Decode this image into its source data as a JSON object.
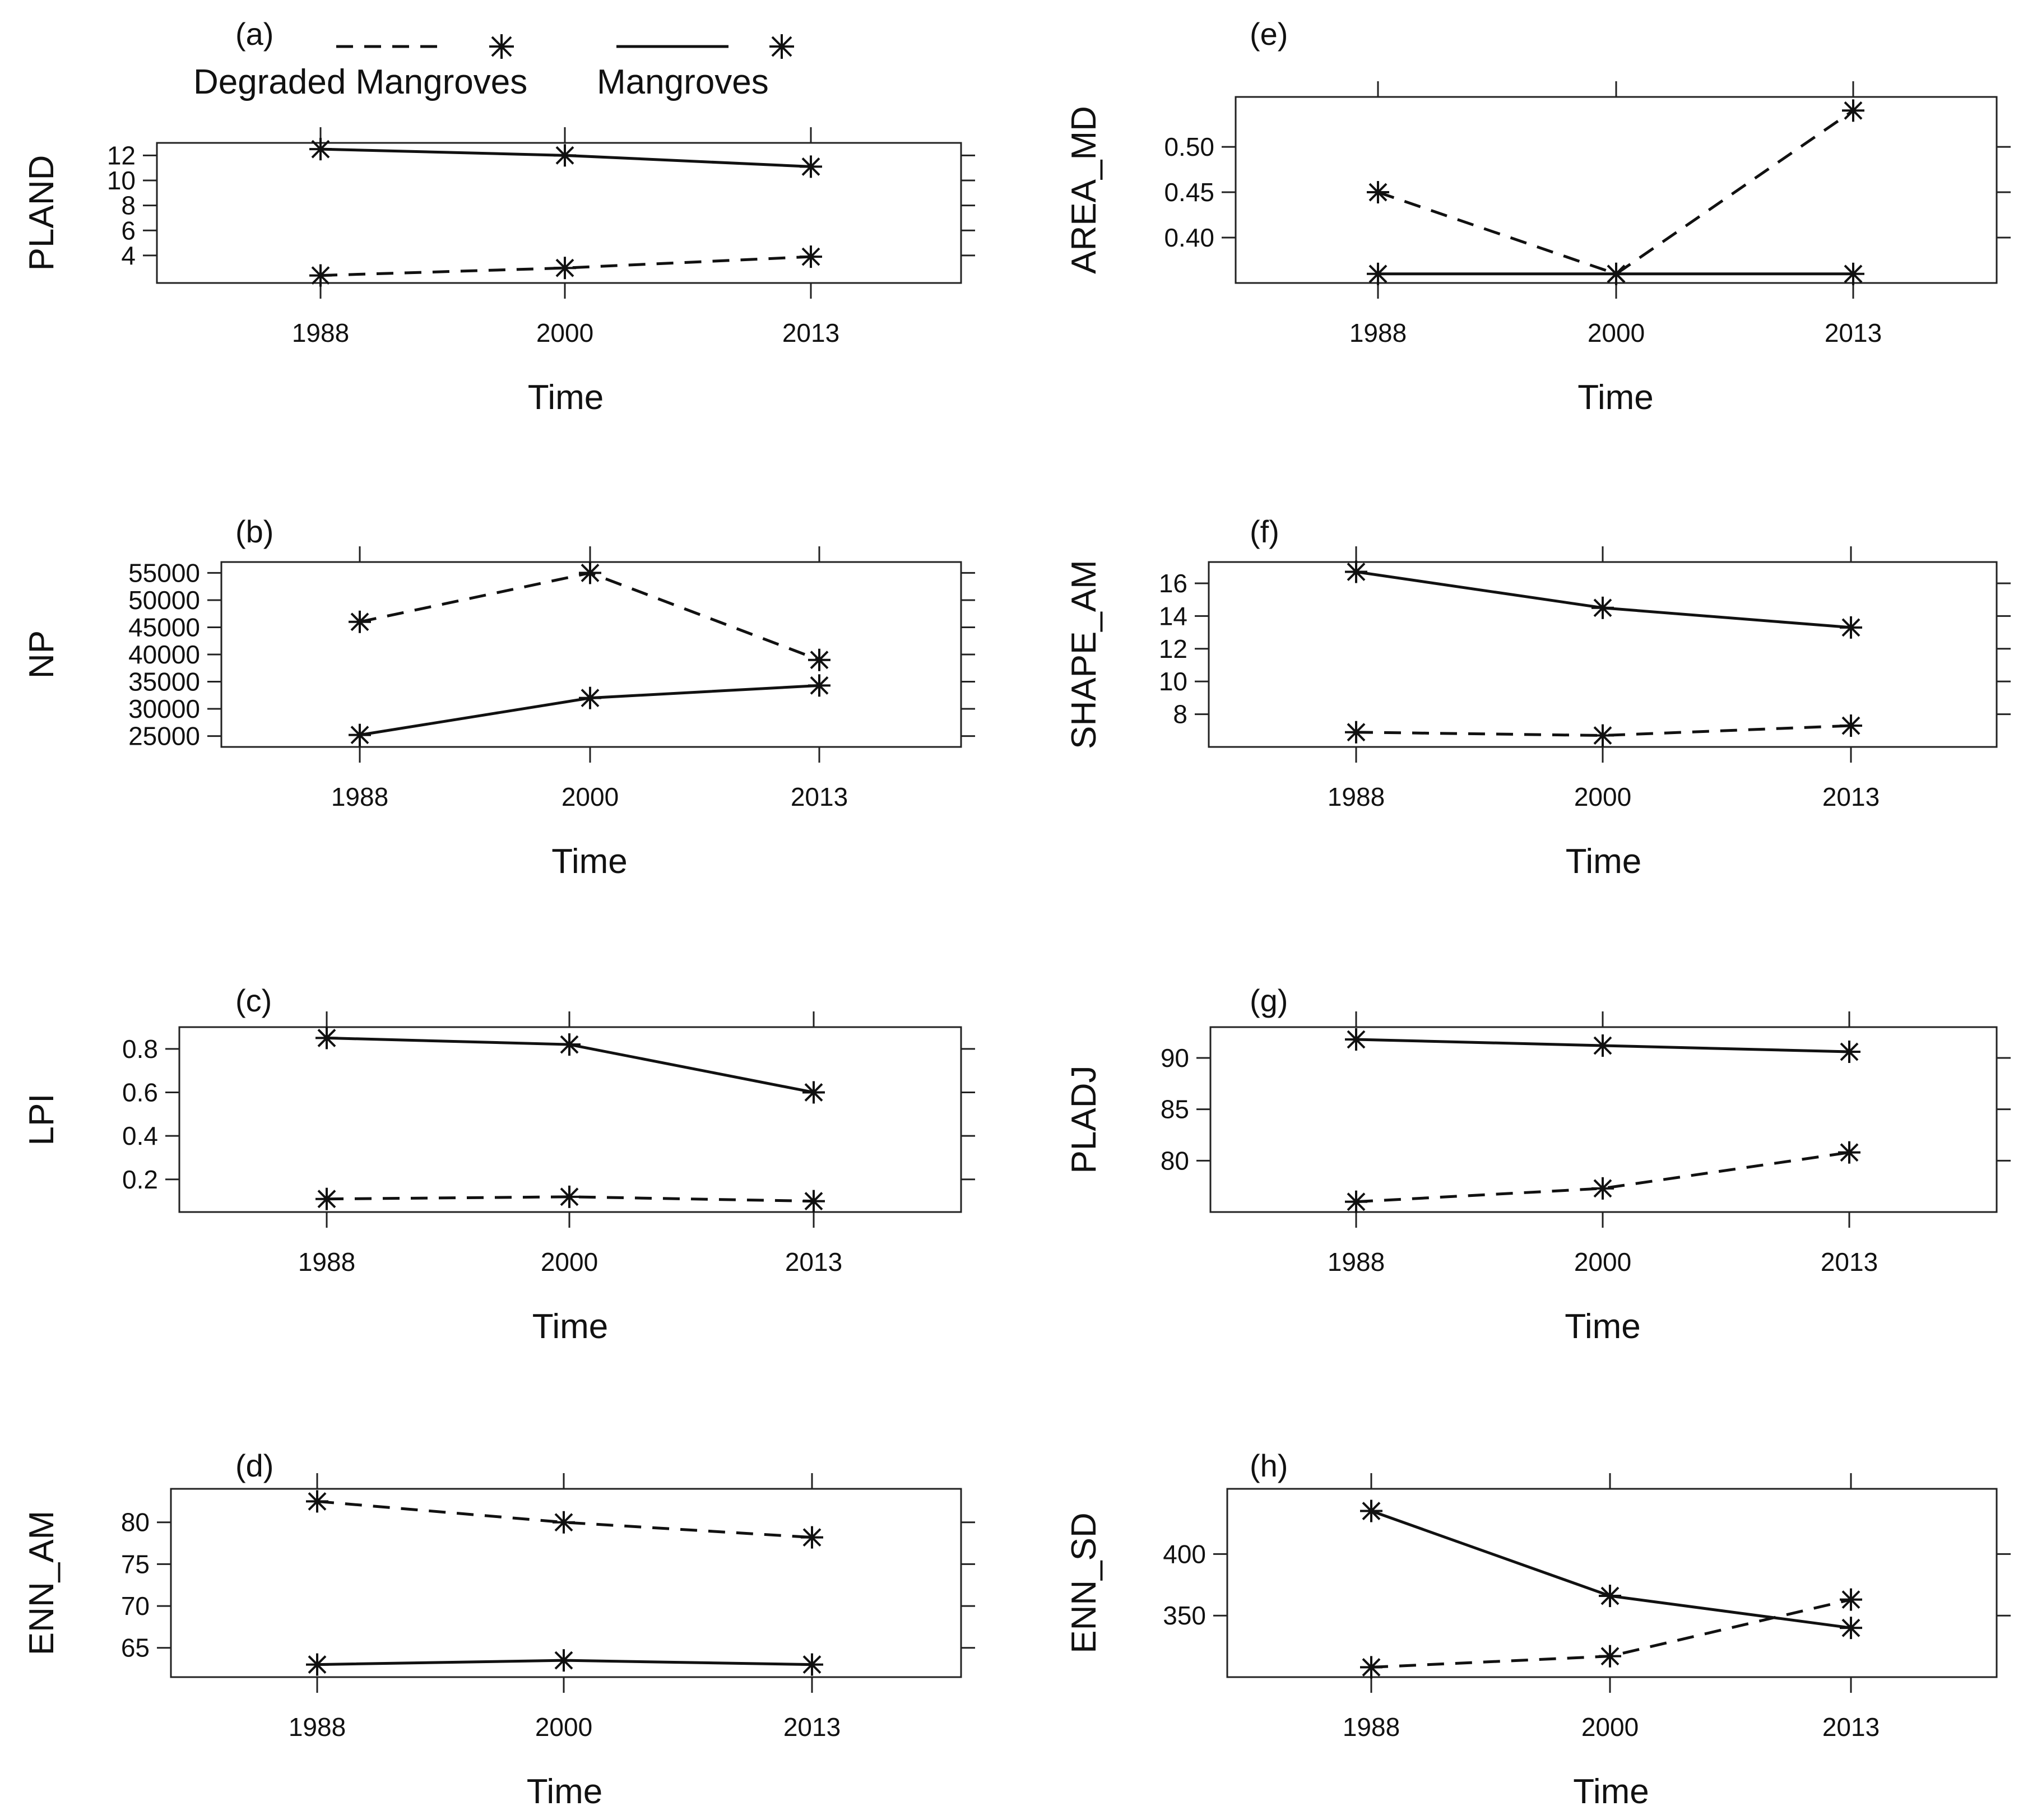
{
  "legend": {
    "degraded_label": "Degraded Mangroves",
    "mangroves_label": "Mangroves"
  },
  "chart_data": [
    {
      "type": "line",
      "panel": "(a)",
      "xlabel": "Time",
      "ylabel": "PLAND",
      "categories": [
        "1988",
        "2000",
        "2013"
      ],
      "ylim": [
        1.8,
        13.0
      ],
      "yticks": [
        4,
        6,
        8,
        10,
        12
      ],
      "ytick_labels": [
        "4",
        "6",
        "8",
        "10",
        "12"
      ],
      "series": [
        {
          "name": "Degraded Mangroves",
          "style": "dashed",
          "values": [
            2.4,
            3.0,
            3.9
          ]
        },
        {
          "name": "Mangroves",
          "style": "solid",
          "values": [
            12.5,
            12.0,
            11.1
          ]
        }
      ]
    },
    {
      "type": "line",
      "panel": "(b)",
      "xlabel": "Time",
      "ylabel": "NP",
      "categories": [
        "1988",
        "2000",
        "2013"
      ],
      "ylim": [
        23000,
        57000
      ],
      "yticks": [
        25000,
        30000,
        35000,
        40000,
        45000,
        50000,
        55000
      ],
      "ytick_labels": [
        "25000",
        "30000",
        "35000",
        "40000",
        "45000",
        "50000",
        "55000"
      ],
      "series": [
        {
          "name": "Degraded Mangroves",
          "style": "dashed",
          "values": [
            46000,
            55000,
            39000
          ]
        },
        {
          "name": "Mangroves",
          "style": "solid",
          "values": [
            25200,
            32000,
            34300
          ]
        }
      ]
    },
    {
      "type": "line",
      "panel": "(c)",
      "xlabel": "Time",
      "ylabel": "LPI",
      "categories": [
        "1988",
        "2000",
        "2013"
      ],
      "ylim": [
        0.05,
        0.9
      ],
      "yticks": [
        0.2,
        0.4,
        0.6,
        0.8
      ],
      "ytick_labels": [
        "0.2",
        "0.4",
        "0.6",
        "0.8"
      ],
      "series": [
        {
          "name": "Degraded Mangroves",
          "style": "dashed",
          "values": [
            0.11,
            0.12,
            0.1
          ]
        },
        {
          "name": "Mangroves",
          "style": "solid",
          "values": [
            0.85,
            0.82,
            0.6
          ]
        }
      ]
    },
    {
      "type": "line",
      "panel": "(d)",
      "xlabel": "Time",
      "ylabel": "ENN_AM",
      "categories": [
        "1988",
        "2000",
        "2013"
      ],
      "ylim": [
        61.5,
        84.0
      ],
      "yticks": [
        65,
        70,
        75,
        80
      ],
      "ytick_labels": [
        "65",
        "70",
        "75",
        "80"
      ],
      "series": [
        {
          "name": "Degraded Mangroves",
          "style": "dashed",
          "values": [
            82.5,
            80.0,
            78.2
          ]
        },
        {
          "name": "Mangroves",
          "style": "solid",
          "values": [
            63.0,
            63.5,
            63.0
          ]
        }
      ]
    },
    {
      "type": "line",
      "panel": "(e)",
      "xlabel": "Time",
      "ylabel": "AREA_MD",
      "categories": [
        "1988",
        "2000",
        "2013"
      ],
      "ylim": [
        0.35,
        0.555
      ],
      "yticks": [
        0.4,
        0.45,
        0.5
      ],
      "ytick_labels": [
        "0.40",
        "0.45",
        "0.50"
      ],
      "series": [
        {
          "name": "Degraded Mangroves",
          "style": "dashed",
          "values": [
            0.45,
            0.36,
            0.54
          ]
        },
        {
          "name": "Mangroves",
          "style": "solid",
          "values": [
            0.36,
            0.36,
            0.36
          ]
        }
      ]
    },
    {
      "type": "line",
      "panel": "(f)",
      "xlabel": "Time",
      "ylabel": "SHAPE_AM",
      "categories": [
        "1988",
        "2000",
        "2013"
      ],
      "ylim": [
        6.0,
        17.3
      ],
      "yticks": [
        8,
        10,
        12,
        14,
        16
      ],
      "ytick_labels": [
        "8",
        "10",
        "12",
        "14",
        "16"
      ],
      "series": [
        {
          "name": "Degraded Mangroves",
          "style": "dashed",
          "values": [
            6.9,
            6.7,
            7.3
          ]
        },
        {
          "name": "Mangroves",
          "style": "solid",
          "values": [
            16.7,
            14.5,
            13.3
          ]
        }
      ]
    },
    {
      "type": "line",
      "panel": "(g)",
      "xlabel": "Time",
      "ylabel": "PLADJ",
      "categories": [
        "1988",
        "2000",
        "2013"
      ],
      "ylim": [
        75.0,
        93.0
      ],
      "yticks": [
        80,
        85,
        90
      ],
      "ytick_labels": [
        "80",
        "85",
        "90"
      ],
      "series": [
        {
          "name": "Degraded Mangroves",
          "style": "dashed",
          "values": [
            76.0,
            77.3,
            80.8
          ]
        },
        {
          "name": "Mangroves",
          "style": "solid",
          "values": [
            91.8,
            91.2,
            90.6
          ]
        }
      ]
    },
    {
      "type": "line",
      "panel": "(h)",
      "xlabel": "Time",
      "ylabel": "ENN_SD",
      "categories": [
        "1988",
        "2000",
        "2013"
      ],
      "ylim": [
        300,
        453
      ],
      "yticks": [
        350,
        400
      ],
      "ytick_labels": [
        "350",
        "400"
      ],
      "series": [
        {
          "name": "Degraded Mangroves",
          "style": "dashed",
          "values": [
            308,
            317,
            363
          ]
        },
        {
          "name": "Mangroves",
          "style": "solid",
          "values": [
            435,
            366,
            340
          ]
        }
      ]
    }
  ]
}
